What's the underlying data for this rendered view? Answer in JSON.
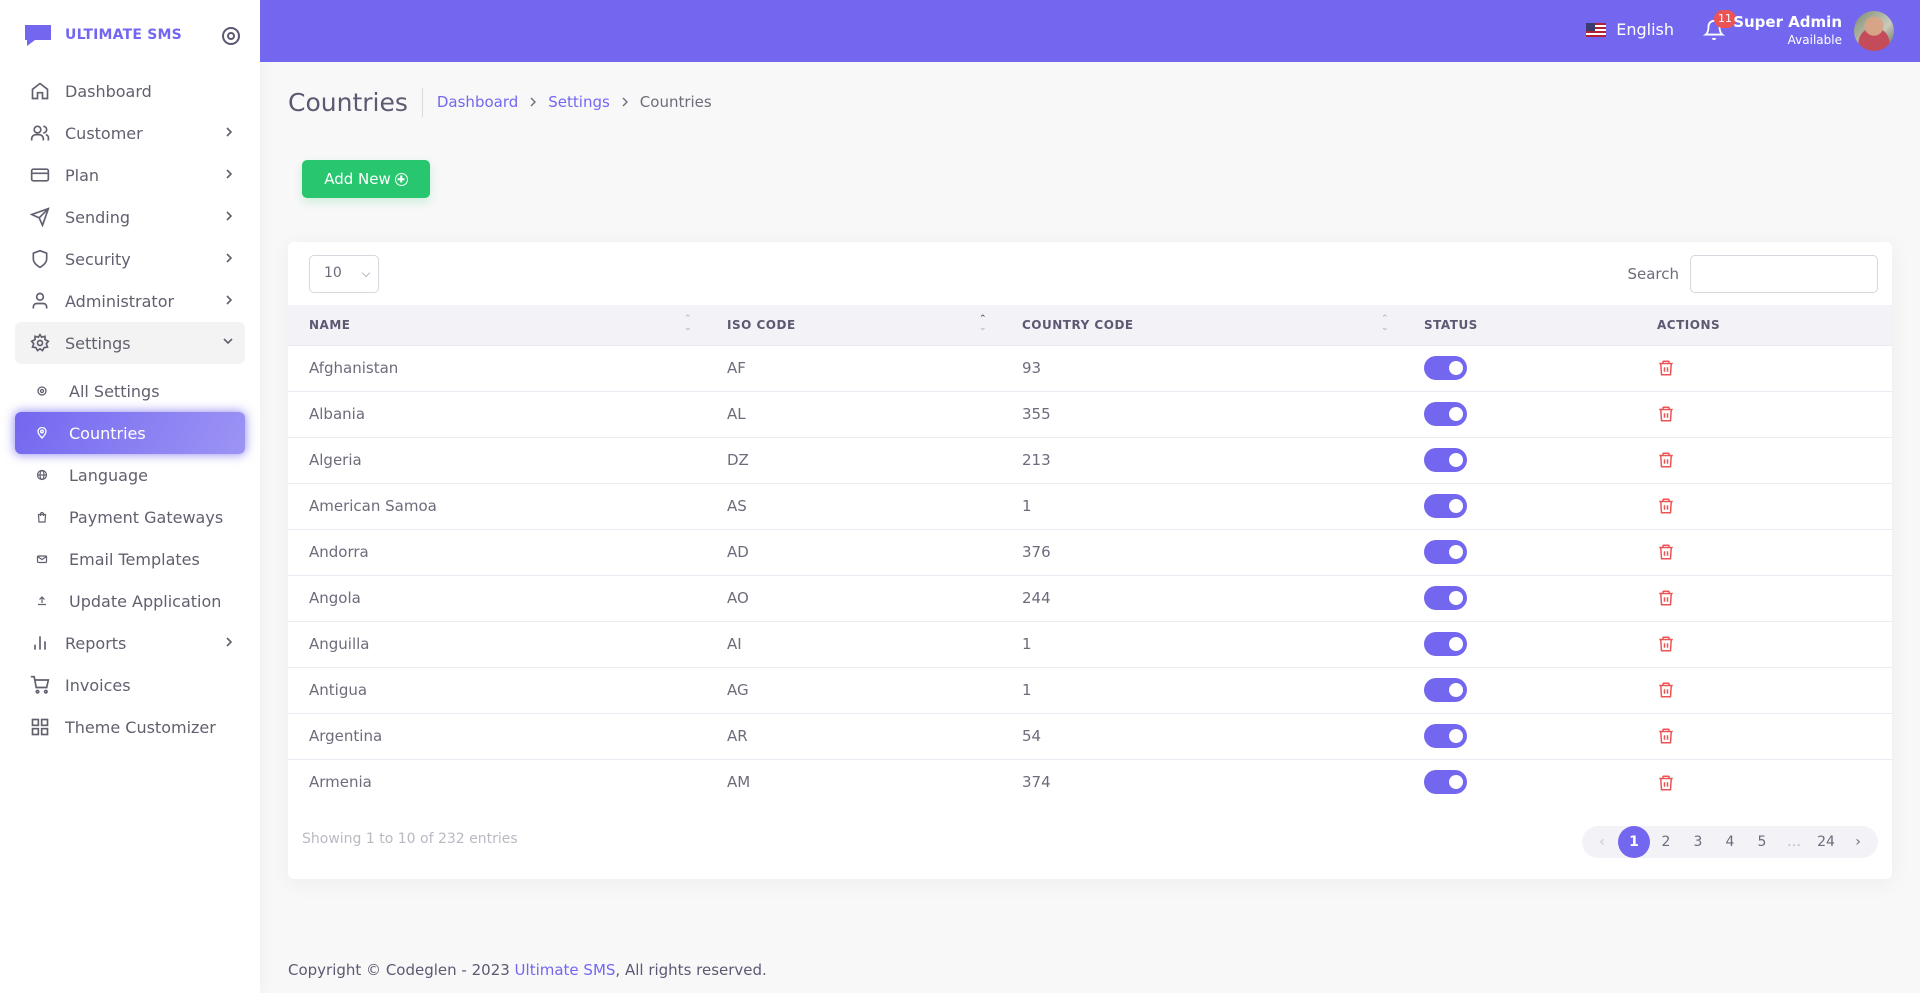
{
  "brand": {
    "name": "ULTIMATE SMS"
  },
  "sidebar": {
    "items": [
      {
        "label": "Dashboard",
        "icon": "home-icon"
      },
      {
        "label": "Customer",
        "icon": "users-icon"
      },
      {
        "label": "Plan",
        "icon": "credit-card-icon"
      },
      {
        "label": "Sending",
        "icon": "send-icon"
      },
      {
        "label": "Security",
        "icon": "shield-icon"
      },
      {
        "label": "Administrator",
        "icon": "user-icon"
      },
      {
        "label": "Settings",
        "icon": "gear-icon"
      },
      {
        "label": "Reports",
        "icon": "bar-chart-icon"
      },
      {
        "label": "Invoices",
        "icon": "cart-icon"
      },
      {
        "label": "Theme Customizer",
        "icon": "grid-icon"
      }
    ],
    "settings_sub": [
      {
        "label": "All Settings"
      },
      {
        "label": "Countries"
      },
      {
        "label": "Language"
      },
      {
        "label": "Payment Gateways"
      },
      {
        "label": "Email Templates"
      },
      {
        "label": "Update Application"
      }
    ]
  },
  "header": {
    "language": "English",
    "notification_count": "11",
    "user_name": "Super Admin",
    "user_status": "Available"
  },
  "page": {
    "title": "Countries",
    "breadcrumb": [
      "Dashboard",
      "Settings",
      "Countries"
    ],
    "add_button": "Add New"
  },
  "table": {
    "page_length": "10",
    "search_label": "Search",
    "search_value": "",
    "columns": [
      "NAME",
      "ISO CODE",
      "COUNTRY CODE",
      "STATUS",
      "ACTIONS"
    ],
    "rows": [
      {
        "name": "Afghanistan",
        "iso": "AF",
        "code": "93",
        "status": "on"
      },
      {
        "name": "Albania",
        "iso": "AL",
        "code": "355",
        "status": "on"
      },
      {
        "name": "Algeria",
        "iso": "DZ",
        "code": "213",
        "status": "on"
      },
      {
        "name": "American Samoa",
        "iso": "AS",
        "code": "1",
        "status": "on"
      },
      {
        "name": "Andorra",
        "iso": "AD",
        "code": "376",
        "status": "on"
      },
      {
        "name": "Angola",
        "iso": "AO",
        "code": "244",
        "status": "on"
      },
      {
        "name": "Anguilla",
        "iso": "AI",
        "code": "1",
        "status": "on"
      },
      {
        "name": "Antigua",
        "iso": "AG",
        "code": "1",
        "status": "on"
      },
      {
        "name": "Argentina",
        "iso": "AR",
        "code": "54",
        "status": "on"
      },
      {
        "name": "Armenia",
        "iso": "AM",
        "code": "374",
        "status": "on"
      }
    ],
    "info": "Showing 1 to 10 of 232 entries",
    "pagination": [
      "1",
      "2",
      "3",
      "4",
      "5",
      "…",
      "24"
    ],
    "current_page": "1"
  },
  "footer": {
    "prefix": "Copyright © Codeglen - 2023 ",
    "link": "Ultimate SMS",
    "suffix": ", All rights reserved."
  },
  "colors": {
    "primary": "#7367f0",
    "success": "#28c76f",
    "danger": "#ea5455"
  }
}
